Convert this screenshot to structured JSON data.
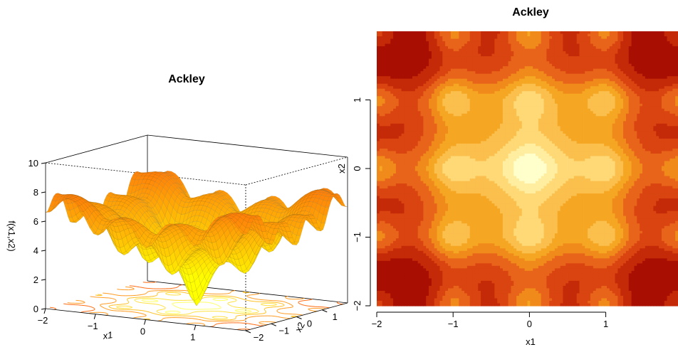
{
  "chart_data": [
    {
      "type": "surface",
      "title": "Ackley",
      "xlabel": "x1",
      "ylabel": "x2",
      "zlabel": "f(x1,x2)",
      "function": "ackley",
      "xlim": [
        -2,
        2
      ],
      "ylim": [
        -2,
        2
      ],
      "zlim": [
        0,
        10
      ],
      "x_ticks": [
        -2,
        -1,
        0,
        1
      ],
      "x_tick_labels": [
        "−2",
        "−1",
        "0",
        "1"
      ],
      "y_ticks": [
        -2,
        -1,
        0,
        1
      ],
      "y_tick_labels": [
        "−2",
        "−1",
        "0",
        "1"
      ],
      "z_ticks": [
        0,
        2,
        4,
        6,
        8,
        10
      ],
      "z_tick_labels": [
        "0",
        "2",
        "4",
        "6",
        "8",
        "10"
      ],
      "contour_projection": true,
      "colors": {
        "low": "#ffff00",
        "high": "#ff4000"
      }
    },
    {
      "type": "heatmap",
      "title": "Ackley",
      "xlabel": "x1",
      "ylabel": "x2",
      "function": "ackley",
      "xlim": [
        -2,
        2
      ],
      "ylim": [
        -2,
        2
      ],
      "x_ticks": [
        -2,
        -1,
        0,
        1
      ],
      "x_tick_labels": [
        "−2",
        "−1",
        "0",
        "1"
      ],
      "y_ticks": [
        -2,
        -1,
        0,
        1
      ],
      "y_tick_labels": [
        "−2",
        "−1",
        "0",
        "1"
      ],
      "palette": [
        "#ffffcc",
        "#ffeda0",
        "#fed976",
        "#fbbf4d",
        "#f5a623",
        "#f08a1a",
        "#e8641a",
        "#d94410",
        "#c52a08",
        "#a80f02",
        "#7a0028"
      ],
      "level_breaks": [
        0,
        1.5,
        2.5,
        3.4,
        4.2,
        4.9,
        5.5,
        6.1,
        6.6,
        7.2,
        8.0,
        99
      ]
    }
  ]
}
